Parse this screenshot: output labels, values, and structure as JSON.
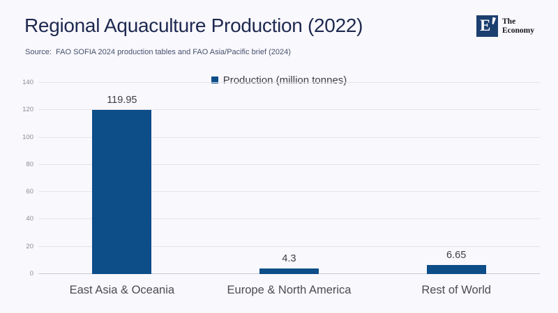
{
  "header": {
    "title": "Regional Aquaculture Production (2022)",
    "source": "Source:  FAO SOFIA 2024 production tables and FAO Asia/Pacific brief (2024)"
  },
  "logo": {
    "letter": "E",
    "line1": "The",
    "line2": "Economy"
  },
  "chart_data": {
    "type": "bar",
    "title": "Regional Aquaculture Production (2022)",
    "categories": [
      "East Asia & Oceania",
      "Europe & North America",
      "Rest of World"
    ],
    "values": [
      119.95,
      4.3,
      6.65
    ],
    "value_labels": [
      "119.95",
      "4.3",
      "6.65"
    ],
    "legend_label": "Production (million tonnes)",
    "legend_position": "top",
    "xlabel": "",
    "ylabel": "",
    "ylim": [
      0,
      140
    ],
    "ytick_step": 20,
    "grid": true,
    "colors": {
      "background": "#f9f8fd",
      "title": "#1e2950",
      "source": "#45506b",
      "bar": "#0d4d88",
      "logo_box": "#1d3f70"
    }
  }
}
